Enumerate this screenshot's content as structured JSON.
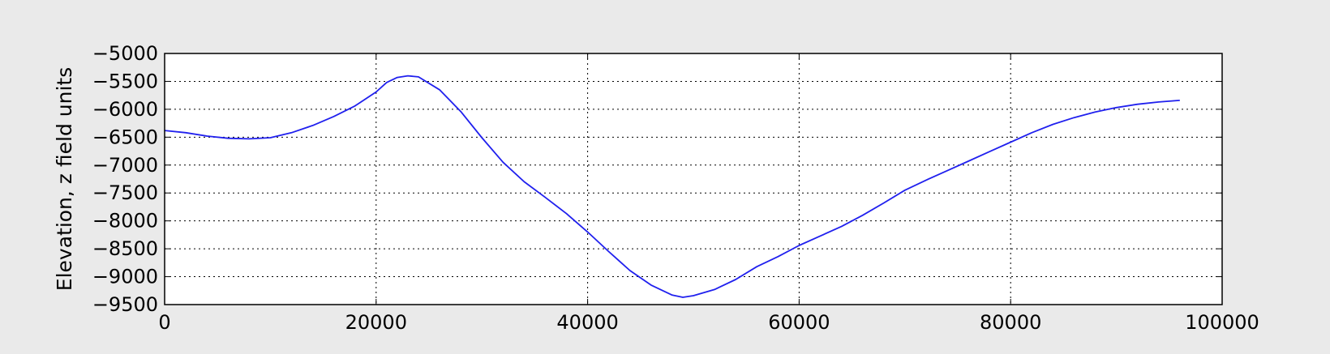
{
  "chart_data": {
    "type": "line",
    "title": "",
    "xlabel": "",
    "ylabel": "Elevation, z field units",
    "xlim": [
      0,
      100000
    ],
    "ylim": [
      -9500,
      -5000
    ],
    "xticks": [
      0,
      20000,
      40000,
      60000,
      80000,
      100000
    ],
    "yticks": [
      -5000,
      -5500,
      -6000,
      -6500,
      -7000,
      -7500,
      -8000,
      -8500,
      -9000,
      -9500
    ],
    "grid": true,
    "legend": "none",
    "series": [
      {
        "color": "#2020ee",
        "x": [
          0,
          2000,
          4000,
          6000,
          8000,
          10000,
          12000,
          14000,
          16000,
          18000,
          20000,
          21000,
          22000,
          23000,
          24000,
          26000,
          28000,
          30000,
          32000,
          34000,
          36000,
          38000,
          40000,
          42000,
          44000,
          46000,
          48000,
          49000,
          50000,
          52000,
          54000,
          56000,
          58000,
          60000,
          62000,
          64000,
          66000,
          68000,
          70000,
          72000,
          74000,
          76000,
          78000,
          80000,
          82000,
          84000,
          86000,
          88000,
          90000,
          92000,
          94000,
          96000
        ],
        "y": [
          -6380,
          -6420,
          -6480,
          -6520,
          -6530,
          -6510,
          -6420,
          -6290,
          -6130,
          -5940,
          -5690,
          -5520,
          -5430,
          -5400,
          -5420,
          -5650,
          -6040,
          -6510,
          -6950,
          -7300,
          -7580,
          -7870,
          -8200,
          -8550,
          -8890,
          -9150,
          -9330,
          -9370,
          -9340,
          -9230,
          -9050,
          -8820,
          -8640,
          -8440,
          -8270,
          -8100,
          -7900,
          -7680,
          -7450,
          -7270,
          -7100,
          -6930,
          -6760,
          -6590,
          -6420,
          -6270,
          -6150,
          -6050,
          -5970,
          -5910,
          -5870,
          -5840
        ]
      }
    ]
  }
}
